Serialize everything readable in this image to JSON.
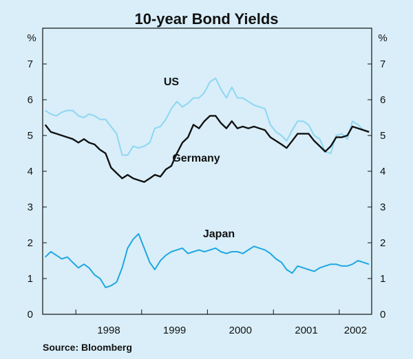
{
  "chart_data": {
    "type": "line",
    "title": "10-year Bond Yields",
    "unit_left": "%",
    "unit_right": "%",
    "ylim": [
      0,
      8
    ],
    "y_ticks": [
      0,
      1,
      2,
      3,
      4,
      5,
      6,
      7
    ],
    "xlim": [
      "1997-07-01",
      "2002-06-30"
    ],
    "x_tick_labels": [
      "1998",
      "1999",
      "2000",
      "2001",
      "2002"
    ],
    "grid": false,
    "source": "Source: Bloomberg",
    "series": [
      {
        "name": "US",
        "color": "#8fd6f3",
        "x": [
          "1997-07",
          "1997-08",
          "1997-09",
          "1997-10",
          "1997-11",
          "1997-12",
          "1998-01",
          "1998-02",
          "1998-03",
          "1998-04",
          "1998-05",
          "1998-06",
          "1998-07",
          "1998-08",
          "1998-09",
          "1998-10",
          "1998-11",
          "1998-12",
          "1999-01",
          "1999-02",
          "1999-03",
          "1999-04",
          "1999-05",
          "1999-06",
          "1999-07",
          "1999-08",
          "1999-09",
          "1999-10",
          "1999-11",
          "1999-12",
          "2000-01",
          "2000-02",
          "2000-03",
          "2000-04",
          "2000-05",
          "2000-06",
          "2000-07",
          "2000-08",
          "2000-09",
          "2000-10",
          "2000-11",
          "2000-12",
          "2001-01",
          "2001-02",
          "2001-03",
          "2001-04",
          "2001-05",
          "2001-06",
          "2001-07",
          "2001-08",
          "2001-09",
          "2001-10",
          "2001-11",
          "2001-12",
          "2002-01",
          "2002-02",
          "2002-03",
          "2002-04",
          "2002-05",
          "2002-06"
        ],
        "values": [
          5.7,
          5.6,
          5.55,
          5.65,
          5.7,
          5.7,
          5.55,
          5.5,
          5.6,
          5.55,
          5.45,
          5.45,
          5.25,
          5.05,
          4.45,
          4.45,
          4.7,
          4.65,
          4.7,
          4.8,
          5.2,
          5.25,
          5.45,
          5.75,
          5.95,
          5.8,
          5.9,
          6.05,
          6.05,
          6.2,
          6.5,
          6.6,
          6.3,
          6.05,
          6.35,
          6.05,
          6.05,
          5.95,
          5.85,
          5.8,
          5.75,
          5.3,
          5.1,
          5.0,
          4.85,
          5.15,
          5.4,
          5.4,
          5.3,
          5.0,
          4.9,
          4.55,
          4.5,
          5.0,
          5.05,
          4.9,
          5.4,
          5.3,
          5.15,
          5.1
        ]
      },
      {
        "name": "Germany",
        "color": "#111111",
        "x": [
          "1997-07",
          "1997-08",
          "1997-09",
          "1997-10",
          "1997-11",
          "1997-12",
          "1998-01",
          "1998-02",
          "1998-03",
          "1998-04",
          "1998-05",
          "1998-06",
          "1998-07",
          "1998-08",
          "1998-09",
          "1998-10",
          "1998-11",
          "1998-12",
          "1999-01",
          "1999-02",
          "1999-03",
          "1999-04",
          "1999-05",
          "1999-06",
          "1999-07",
          "1999-08",
          "1999-09",
          "1999-10",
          "1999-11",
          "1999-12",
          "2000-01",
          "2000-02",
          "2000-03",
          "2000-04",
          "2000-05",
          "2000-06",
          "2000-07",
          "2000-08",
          "2000-09",
          "2000-10",
          "2000-11",
          "2000-12",
          "2001-01",
          "2001-02",
          "2001-03",
          "2001-04",
          "2001-05",
          "2001-06",
          "2001-07",
          "2001-08",
          "2001-09",
          "2001-10",
          "2001-11",
          "2001-12",
          "2002-01",
          "2002-02",
          "2002-03",
          "2002-04",
          "2002-05",
          "2002-06"
        ],
        "values": [
          5.3,
          5.1,
          5.05,
          5.0,
          4.95,
          4.9,
          4.8,
          4.9,
          4.8,
          4.75,
          4.6,
          4.5,
          4.1,
          3.95,
          3.8,
          3.9,
          3.8,
          3.75,
          3.7,
          3.8,
          3.9,
          3.85,
          4.05,
          4.15,
          4.5,
          4.8,
          4.95,
          5.3,
          5.2,
          5.4,
          5.55,
          5.55,
          5.35,
          5.2,
          5.4,
          5.2,
          5.25,
          5.2,
          5.25,
          5.2,
          5.15,
          4.95,
          4.85,
          4.75,
          4.65,
          4.85,
          5.05,
          5.05,
          5.05,
          4.85,
          4.7,
          4.55,
          4.7,
          4.95,
          4.95,
          5.0,
          5.25,
          5.2,
          5.15,
          5.1
        ]
      },
      {
        "name": "Japan",
        "color": "#1ea7e1",
        "x": [
          "1997-07",
          "1997-08",
          "1997-09",
          "1997-10",
          "1997-11",
          "1997-12",
          "1998-01",
          "1998-02",
          "1998-03",
          "1998-04",
          "1998-05",
          "1998-06",
          "1998-07",
          "1998-08",
          "1998-09",
          "1998-10",
          "1998-11",
          "1998-12",
          "1999-01",
          "1999-02",
          "1999-03",
          "1999-04",
          "1999-05",
          "1999-06",
          "1999-07",
          "1999-08",
          "1999-09",
          "1999-10",
          "1999-11",
          "1999-12",
          "2000-01",
          "2000-02",
          "2000-03",
          "2000-04",
          "2000-05",
          "2000-06",
          "2000-07",
          "2000-08",
          "2000-09",
          "2000-10",
          "2000-11",
          "2000-12",
          "2001-01",
          "2001-02",
          "2001-03",
          "2001-04",
          "2001-05",
          "2001-06",
          "2001-07",
          "2001-08",
          "2001-09",
          "2001-10",
          "2001-11",
          "2001-12",
          "2002-01",
          "2002-02",
          "2002-03",
          "2002-04",
          "2002-05",
          "2002-06"
        ],
        "values": [
          1.6,
          1.75,
          1.65,
          1.55,
          1.6,
          1.45,
          1.3,
          1.4,
          1.3,
          1.1,
          1.0,
          0.75,
          0.8,
          0.9,
          1.3,
          1.85,
          2.1,
          2.25,
          1.85,
          1.45,
          1.25,
          1.5,
          1.65,
          1.75,
          1.8,
          1.85,
          1.7,
          1.75,
          1.8,
          1.75,
          1.8,
          1.85,
          1.75,
          1.7,
          1.75,
          1.75,
          1.7,
          1.8,
          1.9,
          1.85,
          1.8,
          1.7,
          1.55,
          1.45,
          1.25,
          1.15,
          1.35,
          1.3,
          1.25,
          1.2,
          1.3,
          1.35,
          1.4,
          1.4,
          1.35,
          1.35,
          1.4,
          1.5,
          1.45,
          1.4
        ]
      }
    ],
    "series_labels": [
      {
        "series": "US",
        "text": "US"
      },
      {
        "series": "Germany",
        "text": "Germany"
      },
      {
        "series": "Japan",
        "text": "Japan"
      }
    ]
  }
}
